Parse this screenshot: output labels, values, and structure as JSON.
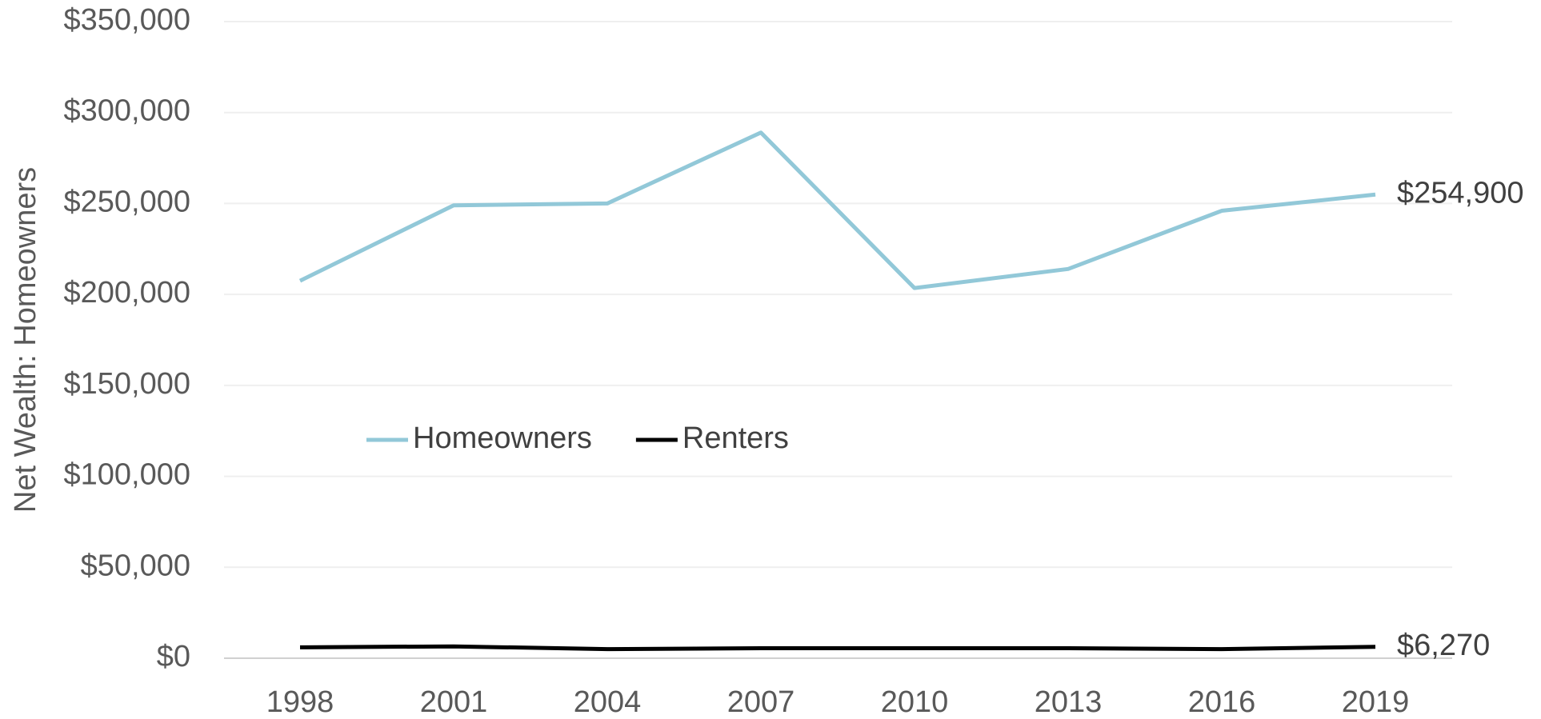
{
  "chart_data": {
    "type": "line",
    "y_label": "Net Wealth: Homeowners",
    "categories": [
      "1998",
      "2001",
      "2004",
      "2007",
      "2010",
      "2013",
      "2016",
      "2019"
    ],
    "series": [
      {
        "name": "Homeowners",
        "color": "#92c8d8",
        "values": [
          207500,
          249000,
          250000,
          289000,
          203500,
          214000,
          246000,
          254900
        ],
        "value_labels": [
          null,
          null,
          null,
          null,
          null,
          null,
          null,
          "$254,900"
        ]
      },
      {
        "name": "Renters",
        "color": "#000000",
        "values": [
          6000,
          6500,
          5000,
          5500,
          5500,
          5500,
          5000,
          6270
        ],
        "value_labels": [
          null,
          null,
          null,
          null,
          null,
          null,
          null,
          "$6,270"
        ]
      }
    ],
    "ylim": [
      0,
      350000
    ],
    "yticks": [
      {
        "value": 0,
        "label": "$0"
      },
      {
        "value": 50000,
        "label": "$50,000"
      },
      {
        "value": 100000,
        "label": "$100,000"
      },
      {
        "value": 150000,
        "label": "$150,000"
      },
      {
        "value": 200000,
        "label": "$200,000"
      },
      {
        "value": 250000,
        "label": "$250,000"
      },
      {
        "value": 300000,
        "label": "$300,000"
      },
      {
        "value": 350000,
        "label": "$350,000"
      }
    ],
    "grid": true,
    "legend": "center-left"
  }
}
